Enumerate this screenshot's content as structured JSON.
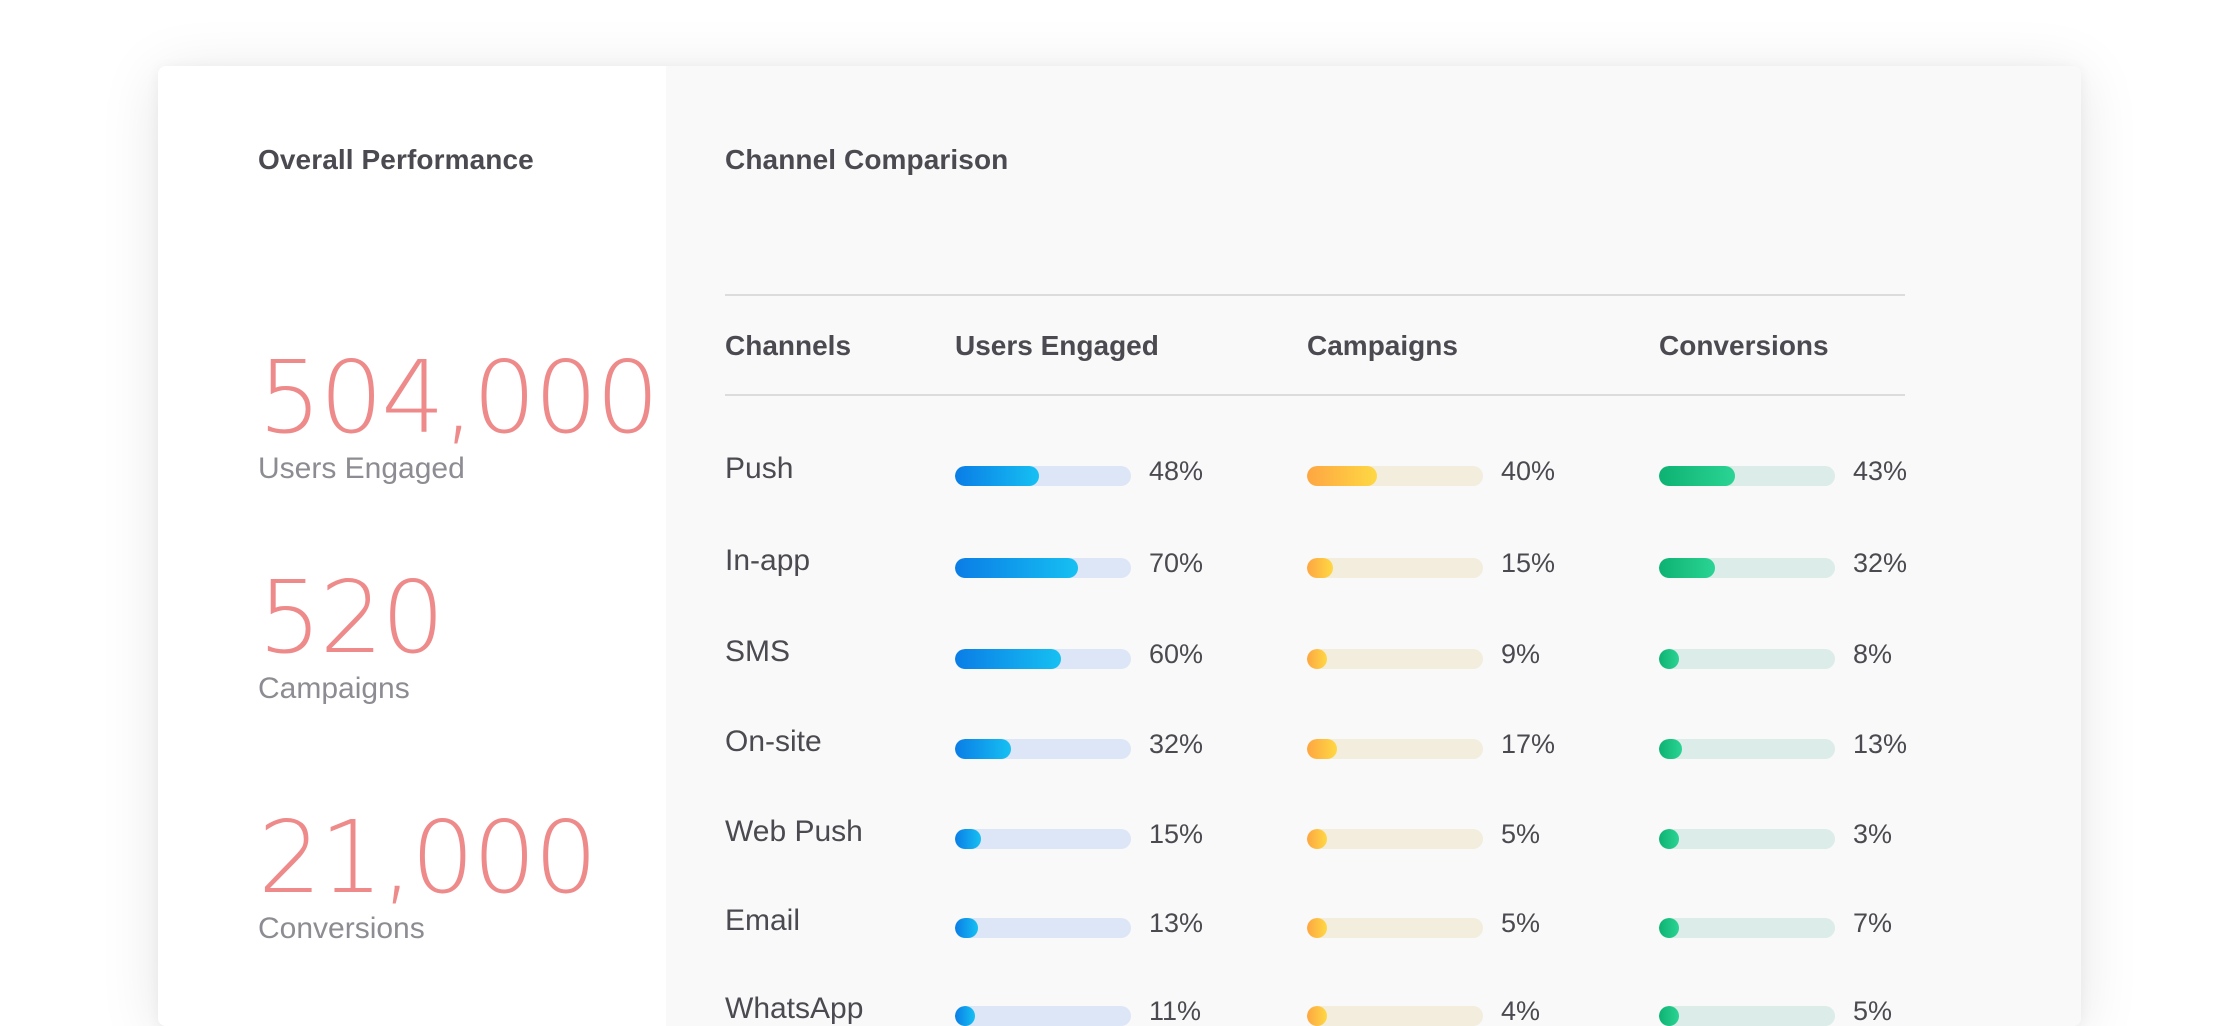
{
  "overall": {
    "title": "Overall Performance",
    "metrics": [
      {
        "value": "504,000",
        "label": "Users Engaged"
      },
      {
        "value": "520",
        "label": "Campaigns"
      },
      {
        "value": "21,000",
        "label": "Conversions"
      }
    ]
  },
  "comparison": {
    "title": "Channel Comparison",
    "headers": {
      "channels": "Channels",
      "users": "Users Engaged",
      "campaigns": "Campaigns",
      "conversions": "Conversions"
    },
    "rows": [
      {
        "channel": "Push",
        "users": 48,
        "campaigns": 40,
        "conversions": 43
      },
      {
        "channel": "In-app",
        "users": 70,
        "campaigns": 15,
        "conversions": 32
      },
      {
        "channel": "SMS",
        "users": 60,
        "campaigns": 9,
        "conversions": 8
      },
      {
        "channel": "On-site",
        "users": 32,
        "campaigns": 17,
        "conversions": 13
      },
      {
        "channel": "Web Push",
        "users": 15,
        "campaigns": 5,
        "conversions": 3
      },
      {
        "channel": "Email",
        "users": 13,
        "campaigns": 5,
        "conversions": 7
      },
      {
        "channel": "WhatsApp",
        "users": 11,
        "campaigns": 4,
        "conversions": 5
      }
    ]
  },
  "colors": {
    "metric_value": "#ee8a8a",
    "users_bar": "#0a7de6",
    "campaigns_bar": "#fea642",
    "conversions_bar": "#0db272"
  }
}
